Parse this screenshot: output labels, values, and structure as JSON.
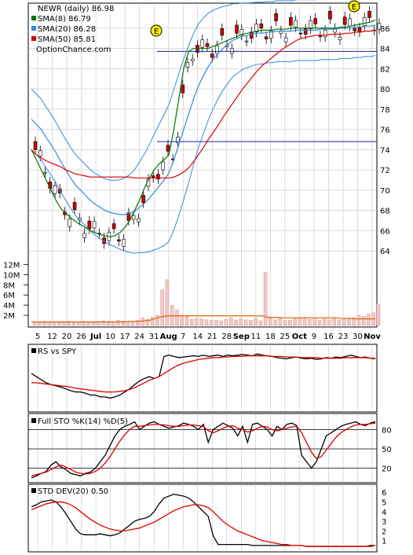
{
  "chart_data": {
    "type": "line",
    "title": "NEWR (daily) 86.98",
    "source": "OptionChance.com",
    "x_labels": [
      "5",
      "12",
      "20",
      "26",
      "Jul",
      "10",
      "17",
      "24",
      "31",
      "Aug",
      "7",
      "14",
      "21",
      "28",
      "Sep",
      "11",
      "18",
      "25",
      "Oct",
      "9",
      "16",
      "23",
      "30",
      "Nov"
    ],
    "earnings_marker": "E",
    "price_panel": {
      "ylim": [
        62,
        88
      ],
      "yticks": [
        "86",
        "84",
        "82",
        "80",
        "78",
        "76",
        "74",
        "72",
        "70",
        "68",
        "66",
        "64"
      ],
      "horizontal_levels": [
        83.7,
        74.8
      ],
      "series": [
        {
          "name": "SMA(8) 86.79",
          "color": "#007700",
          "values": [
            74.0,
            73.0,
            72.0,
            71.0,
            70.0,
            69.0,
            68.2,
            67.7,
            67.3,
            66.9,
            66.6,
            66.3,
            66.0,
            65.8,
            65.6,
            65.5,
            65.4,
            65.5,
            65.8,
            66.3,
            67.0,
            68.0,
            69.0,
            70.2,
            71.2,
            72.0,
            72.6,
            73.0,
            73.5,
            76.0,
            79.0,
            82.0,
            83.7,
            84.0,
            84.0,
            84.0,
            84.0,
            84.2,
            84.4,
            84.6,
            84.8,
            85.0,
            85.2,
            85.4,
            85.5,
            85.6,
            85.7,
            85.8,
            85.8,
            85.8,
            85.9,
            85.9,
            85.9,
            86.0,
            86.0,
            86.0,
            86.0,
            86.0,
            86.0,
            86.0,
            86.0,
            86.0,
            86.0,
            86.1,
            86.1,
            86.2,
            86.3,
            86.4,
            86.5,
            86.6,
            86.8
          ]
        },
        {
          "name": "SMA(20) 86.28",
          "color": "#3388dd",
          "values": [
            77.0,
            76.5,
            76.0,
            75.2,
            74.5,
            73.7,
            72.8,
            72.0,
            71.2,
            70.5,
            70.0,
            69.5,
            69.0,
            68.6,
            68.3,
            68.0,
            67.8,
            67.7,
            67.6,
            67.6,
            67.7,
            67.9,
            68.3,
            68.7,
            69.2,
            69.8,
            70.4,
            71.0,
            71.7,
            73.0,
            74.5,
            76.0,
            77.5,
            79.0,
            80.3,
            81.3,
            82.2,
            82.9,
            83.5,
            84.0,
            84.4,
            84.8,
            85.0,
            85.2,
            85.3,
            85.4,
            85.5,
            85.5,
            85.6,
            85.6,
            85.7,
            85.7,
            85.7,
            85.7,
            85.8,
            85.8,
            85.8,
            85.8,
            85.8,
            85.9,
            85.9,
            85.9,
            85.9,
            86.0,
            86.0,
            86.0,
            86.1,
            86.1,
            86.2,
            86.2,
            86.3
          ]
        },
        {
          "name": "SMA(50) 85.81",
          "color": "#dd0000",
          "values": [
            74.0,
            73.5,
            73.2,
            72.9,
            72.7,
            72.5,
            72.3,
            72.0,
            71.8,
            71.6,
            71.5,
            71.4,
            71.3,
            71.3,
            71.3,
            71.3,
            71.3,
            71.3,
            71.3,
            71.3,
            71.3,
            71.2,
            71.2,
            71.2,
            71.2,
            71.2,
            71.2,
            71.2,
            71.2,
            71.3,
            71.5,
            71.8,
            72.2,
            72.8,
            73.5,
            74.2,
            75.0,
            75.7,
            76.4,
            77.2,
            77.9,
            78.6,
            79.3,
            80.0,
            80.6,
            81.2,
            81.8,
            82.3,
            82.7,
            83.1,
            83.5,
            83.9,
            84.2,
            84.5,
            84.8,
            85.0,
            85.1,
            85.2,
            85.3,
            85.3,
            85.3,
            85.4,
            85.4,
            85.4,
            85.5,
            85.5,
            85.6,
            85.6,
            85.7,
            85.7,
            85.8
          ]
        }
      ]
    },
    "volume_panel": {
      "ylim": [
        0,
        13
      ],
      "yticks": [
        "12M",
        "10M",
        "8M",
        "6M",
        "4M",
        "2M"
      ],
      "values": [
        0.5,
        0.6,
        0.8,
        0.7,
        0.5,
        0.6,
        0.7,
        0.8,
        0.6,
        0.7,
        0.8,
        0.7,
        0.6,
        0.8,
        0.9,
        0.8,
        0.7,
        1.0,
        0.9,
        0.8,
        0.7,
        1.0,
        1.5,
        1.2,
        1.6,
        2.0,
        7.0,
        9.0,
        4.0,
        3.0,
        2.0,
        1.8,
        1.2,
        1.4,
        1.3,
        1.1,
        1.0,
        1.0,
        0.9,
        1.2,
        1.5,
        1.0,
        1.3,
        1.1,
        1.0,
        1.4,
        0.9,
        10.5,
        1.5,
        1.1,
        1.4,
        1.0,
        1.0,
        1.3,
        1.6,
        1.4,
        1.2,
        1.5,
        1.0,
        1.3,
        1.1,
        1.4,
        1.0,
        1.2,
        1.3,
        1.5,
        2.0,
        1.8,
        2.2,
        2.5,
        4.2
      ],
      "average": [
        0.7,
        0.7,
        0.7,
        0.7,
        0.7,
        0.7,
        0.7,
        0.7,
        0.7,
        0.7,
        0.7,
        0.7,
        0.7,
        0.7,
        0.7,
        0.7,
        0.7,
        0.7,
        0.7,
        0.7,
        0.8,
        0.8,
        0.8,
        0.9,
        1.0,
        1.3,
        1.6,
        1.8,
        1.9,
        1.9,
        1.9,
        1.9,
        1.9,
        1.9,
        1.9,
        1.9,
        1.9,
        1.9,
        1.9,
        1.9,
        1.9,
        1.9,
        1.9,
        1.9,
        1.9,
        1.9,
        1.9,
        1.9,
        1.6,
        1.6,
        1.6,
        1.5,
        1.5,
        1.5,
        1.5,
        1.5,
        1.5,
        1.5,
        1.5,
        1.5,
        1.5,
        1.5,
        1.5,
        1.4,
        1.4,
        1.4,
        1.3,
        1.3,
        1.3,
        1.3,
        1.3
      ]
    },
    "rs_panel": {
      "label": "RS vs SPY",
      "ylim": [
        0,
        1
      ],
      "series": [
        {
          "name": "RS",
          "color": "#000000",
          "values": [
            0.6,
            0.55,
            0.5,
            0.45,
            0.42,
            0.4,
            0.38,
            0.35,
            0.32,
            0.3,
            0.3,
            0.28,
            0.25,
            0.25,
            0.22,
            0.22,
            0.2,
            0.22,
            0.25,
            0.3,
            0.35,
            0.42,
            0.48,
            0.52,
            0.55,
            0.52,
            0.55,
            0.88,
            0.9,
            0.88,
            0.86,
            0.87,
            0.88,
            0.89,
            0.88,
            0.9,
            0.88,
            0.89,
            0.9,
            0.88,
            0.9,
            0.89,
            0.9,
            0.91,
            0.9,
            0.89,
            0.92,
            0.9,
            0.89,
            0.88,
            0.86,
            0.85,
            0.84,
            0.86,
            0.87,
            0.85,
            0.84,
            0.85,
            0.83,
            0.84,
            0.86,
            0.85,
            0.87,
            0.86,
            0.88,
            0.9,
            0.88,
            0.86,
            0.87,
            0.85,
            0.84
          ]
        },
        {
          "name": "RS SMA",
          "color": "#dd0000",
          "values": [
            0.45,
            0.45,
            0.44,
            0.43,
            0.42,
            0.41,
            0.4,
            0.39,
            0.38,
            0.36,
            0.35,
            0.34,
            0.33,
            0.32,
            0.31,
            0.3,
            0.3,
            0.3,
            0.31,
            0.32,
            0.34,
            0.37,
            0.41,
            0.45,
            0.49,
            0.52,
            0.55,
            0.6,
            0.65,
            0.7,
            0.74,
            0.77,
            0.79,
            0.81,
            0.83,
            0.84,
            0.85,
            0.86,
            0.86,
            0.87,
            0.87,
            0.88,
            0.88,
            0.88,
            0.89,
            0.89,
            0.89,
            0.89,
            0.89,
            0.88,
            0.88,
            0.88,
            0.87,
            0.87,
            0.87,
            0.86,
            0.86,
            0.86,
            0.86,
            0.85,
            0.85,
            0.85,
            0.85,
            0.85,
            0.86,
            0.86,
            0.86,
            0.86,
            0.86,
            0.85,
            0.85
          ]
        }
      ]
    },
    "stoch_panel": {
      "label": "Full STO %K(14) %D(5)",
      "ylim": [
        0,
        100
      ],
      "levels": [
        80,
        50,
        20
      ],
      "yticks": [
        "80",
        "50",
        "20"
      ],
      "series": [
        {
          "name": "%K",
          "color": "#000000",
          "values": [
            5,
            8,
            12,
            15,
            25,
            30,
            22,
            18,
            12,
            10,
            8,
            12,
            14,
            20,
            30,
            40,
            55,
            70,
            80,
            85,
            88,
            92,
            80,
            85,
            90,
            92,
            88,
            85,
            82,
            84,
            86,
            90,
            88,
            85,
            80,
            88,
            60,
            80,
            85,
            90,
            86,
            82,
            70,
            85,
            60,
            88,
            90,
            85,
            80,
            70,
            85,
            80,
            88,
            90,
            86,
            40,
            30,
            20,
            30,
            50,
            70,
            75,
            80,
            85,
            88,
            90,
            92,
            88,
            86,
            90,
            92
          ]
        },
        {
          "name": "%D",
          "color": "#dd0000",
          "values": [
            8,
            10,
            12,
            14,
            18,
            22,
            25,
            22,
            18,
            14,
            12,
            11,
            12,
            15,
            20,
            28,
            38,
            50,
            62,
            72,
            80,
            85,
            85,
            86,
            87,
            88,
            88,
            87,
            86,
            85,
            85,
            86,
            87,
            87,
            86,
            85,
            78,
            75,
            78,
            82,
            85,
            86,
            82,
            80,
            76,
            78,
            82,
            85,
            84,
            80,
            78,
            80,
            82,
            84,
            85,
            75,
            60,
            45,
            35,
            38,
            48,
            58,
            68,
            75,
            80,
            84,
            87,
            88,
            88,
            89,
            90
          ]
        }
      ]
    },
    "stddev_panel": {
      "label": "STD DEV(20) 0.50",
      "ylim": [
        0,
        6.5
      ],
      "yticks": [
        "6",
        "5",
        "4",
        "3",
        "2",
        "1"
      ],
      "series": [
        {
          "name": "STD DEV",
          "color": "#000000",
          "values": [
            4.5,
            4.7,
            5.0,
            5.1,
            5.2,
            5.0,
            4.5,
            3.8,
            3.0,
            2.2,
            1.7,
            1.6,
            1.6,
            1.6,
            1.7,
            1.6,
            1.5,
            1.6,
            1.8,
            2.2,
            2.6,
            3.0,
            3.2,
            3.3,
            3.5,
            4.0,
            4.8,
            5.4,
            5.6,
            5.8,
            5.7,
            5.6,
            5.4,
            5.0,
            4.5,
            4.0,
            3.5,
            1.5,
            0.6,
            0.6,
            0.6,
            0.6,
            0.6,
            0.6,
            0.6,
            0.5,
            0.5,
            0.5,
            0.5,
            0.5,
            0.5,
            0.5,
            0.5,
            0.5,
            0.5,
            0.5,
            0.4,
            0.4,
            0.4,
            0.4,
            0.4,
            0.4,
            0.4,
            0.4,
            0.4,
            0.4,
            0.4,
            0.4,
            0.4,
            0.5,
            0.5
          ]
        },
        {
          "name": "STD SMA",
          "color": "#dd0000",
          "values": [
            4.2,
            4.4,
            4.6,
            4.8,
            4.9,
            5.0,
            5.0,
            4.9,
            4.7,
            4.4,
            4.0,
            3.6,
            3.2,
            2.9,
            2.6,
            2.4,
            2.2,
            2.1,
            2.0,
            2.0,
            2.1,
            2.2,
            2.3,
            2.5,
            2.7,
            2.9,
            3.2,
            3.5,
            3.8,
            4.1,
            4.3,
            4.5,
            4.6,
            4.7,
            4.7,
            4.6,
            4.4,
            4.0,
            3.5,
            3.0,
            2.6,
            2.3,
            2.0,
            1.8,
            1.6,
            1.4,
            1.2,
            1.0,
            0.9,
            0.8,
            0.7,
            0.6,
            0.6,
            0.5,
            0.5,
            0.5,
            0.4,
            0.4,
            0.4,
            0.4,
            0.4,
            0.4,
            0.4,
            0.4,
            0.4,
            0.4,
            0.4,
            0.4,
            0.4,
            0.4,
            0.5
          ]
        }
      ]
    }
  }
}
